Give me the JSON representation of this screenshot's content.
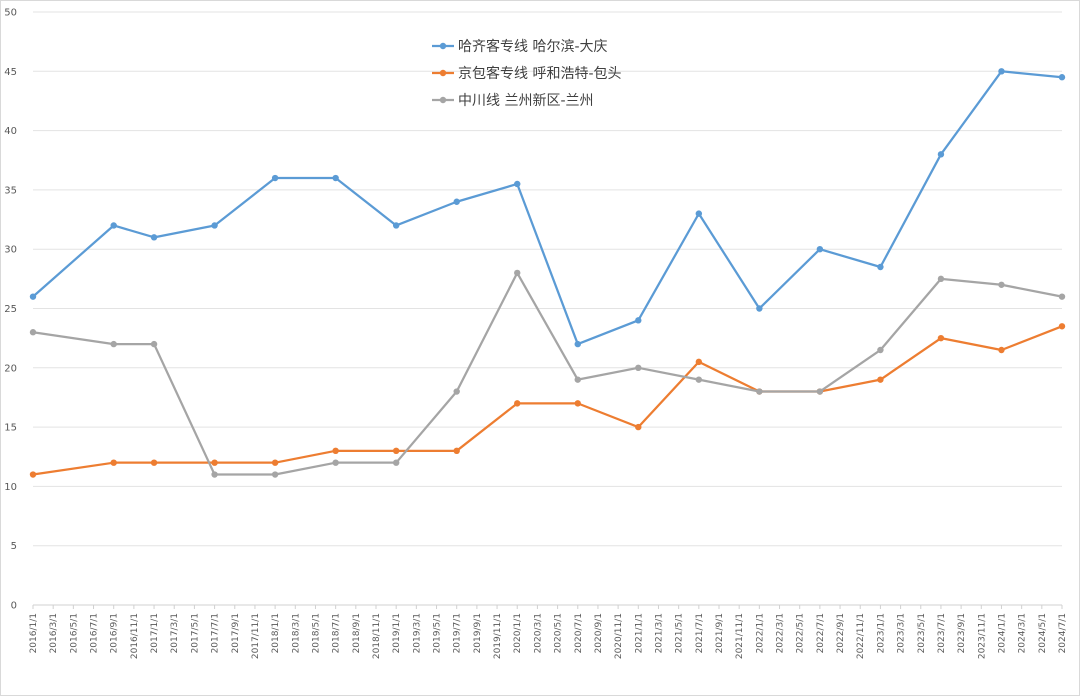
{
  "chart_data": {
    "type": "line",
    "title": "",
    "xlabel": "",
    "ylabel": "",
    "ylim": [
      0,
      50
    ],
    "y_ticks": [
      0,
      5,
      10,
      15,
      20,
      25,
      30,
      35,
      40,
      45,
      50
    ],
    "grid": "horizontal",
    "legend_position": "top-center",
    "x": [
      "2016/1/1",
      "2016/3/1",
      "2016/5/1",
      "2016/7/1",
      "2016/9/1",
      "2016/11/1",
      "2017/1/1",
      "2017/3/1",
      "2017/5/1",
      "2017/7/1",
      "2017/9/1",
      "2017/11/1",
      "2018/1/1",
      "2018/3/1",
      "2018/5/1",
      "2018/7/1",
      "2018/9/1",
      "2018/11/1",
      "2019/1/1",
      "2019/3/1",
      "2019/5/1",
      "2019/7/1",
      "2019/9/1",
      "2019/11/1",
      "2020/1/1",
      "2020/3/1",
      "2020/5/1",
      "2020/7/1",
      "2020/9/1",
      "2020/11/1",
      "2021/1/1",
      "2021/3/1",
      "2021/5/1",
      "2021/7/1",
      "2021/9/1",
      "2021/11/1",
      "2022/1/1",
      "2022/3/1",
      "2022/5/1",
      "2022/7/1",
      "2022/9/1",
      "2022/11/1",
      "2023/1/1",
      "2023/3/1",
      "2023/5/1",
      "2023/7/1",
      "2023/9/1",
      "2023/11/1",
      "2024/1/1",
      "2024/3/1",
      "2024/5/1",
      "2024/7/1"
    ],
    "series": [
      {
        "name": "哈齐客专线 哈尔滨-大庆",
        "color": "#5b9bd5",
        "points": [
          {
            "x": "2016/1/1",
            "y": 26
          },
          {
            "x": "2016/9/1",
            "y": 32
          },
          {
            "x": "2017/1/1",
            "y": 31
          },
          {
            "x": "2017/7/1",
            "y": 32
          },
          {
            "x": "2018/1/1",
            "y": 36
          },
          {
            "x": "2018/7/1",
            "y": 36
          },
          {
            "x": "2019/1/1",
            "y": 32
          },
          {
            "x": "2019/7/1",
            "y": 34
          },
          {
            "x": "2020/1/1",
            "y": 35.5
          },
          {
            "x": "2020/7/1",
            "y": 22
          },
          {
            "x": "2021/1/1",
            "y": 24
          },
          {
            "x": "2021/7/1",
            "y": 33
          },
          {
            "x": "2022/1/1",
            "y": 25
          },
          {
            "x": "2022/7/1",
            "y": 30
          },
          {
            "x": "2023/1/1",
            "y": 28.5
          },
          {
            "x": "2023/7/1",
            "y": 38
          },
          {
            "x": "2024/1/1",
            "y": 45
          },
          {
            "x": "2024/7/1",
            "y": 44.5
          }
        ]
      },
      {
        "name": "京包客专线 呼和浩特-包头",
        "color": "#ed7d31",
        "points": [
          {
            "x": "2016/1/1",
            "y": 11
          },
          {
            "x": "2016/9/1",
            "y": 12
          },
          {
            "x": "2017/1/1",
            "y": 12
          },
          {
            "x": "2017/7/1",
            "y": 12
          },
          {
            "x": "2018/1/1",
            "y": 12
          },
          {
            "x": "2018/7/1",
            "y": 13
          },
          {
            "x": "2019/1/1",
            "y": 13
          },
          {
            "x": "2019/7/1",
            "y": 13
          },
          {
            "x": "2020/1/1",
            "y": 17
          },
          {
            "x": "2020/7/1",
            "y": 17
          },
          {
            "x": "2021/1/1",
            "y": 15
          },
          {
            "x": "2021/7/1",
            "y": 20.5
          },
          {
            "x": "2022/1/1",
            "y": 18
          },
          {
            "x": "2022/7/1",
            "y": 18
          },
          {
            "x": "2023/1/1",
            "y": 19
          },
          {
            "x": "2023/7/1",
            "y": 22.5
          },
          {
            "x": "2024/1/1",
            "y": 21.5
          },
          {
            "x": "2024/7/1",
            "y": 23.5
          }
        ]
      },
      {
        "name": "中川线 兰州新区-兰州",
        "color": "#a5a5a5",
        "points": [
          {
            "x": "2016/1/1",
            "y": 23
          },
          {
            "x": "2016/9/1",
            "y": 22
          },
          {
            "x": "2017/1/1",
            "y": 22
          },
          {
            "x": "2017/7/1",
            "y": 11
          },
          {
            "x": "2018/1/1",
            "y": 11
          },
          {
            "x": "2018/7/1",
            "y": 12
          },
          {
            "x": "2019/1/1",
            "y": 12
          },
          {
            "x": "2019/7/1",
            "y": 18
          },
          {
            "x": "2020/1/1",
            "y": 28
          },
          {
            "x": "2020/7/1",
            "y": 19
          },
          {
            "x": "2021/1/1",
            "y": 20
          },
          {
            "x": "2021/7/1",
            "y": 19
          },
          {
            "x": "2022/1/1",
            "y": 18
          },
          {
            "x": "2022/7/1",
            "y": 18
          },
          {
            "x": "2023/1/1",
            "y": 21.5
          },
          {
            "x": "2023/7/1",
            "y": 27.5
          },
          {
            "x": "2024/1/1",
            "y": 27
          },
          {
            "x": "2024/7/1",
            "y": 26
          }
        ]
      }
    ]
  }
}
